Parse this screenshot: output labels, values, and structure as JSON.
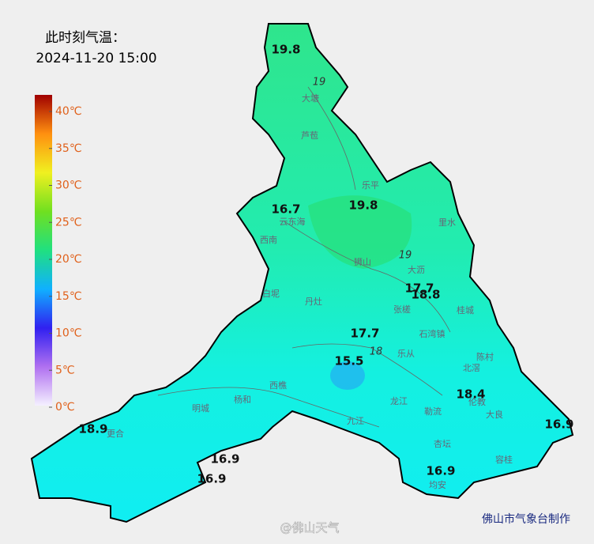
{
  "header": {
    "title": "此时刻气温：",
    "time": "2024-11-20 15:00"
  },
  "legend": {
    "ticks": [
      {
        "value": 0,
        "label": "0℃"
      },
      {
        "value": 5,
        "label": "5℃"
      },
      {
        "value": 10,
        "label": "10℃"
      },
      {
        "value": 15,
        "label": "15℃"
      },
      {
        "value": 20,
        "label": "20℃"
      },
      {
        "value": 25,
        "label": "25℃"
      },
      {
        "value": 30,
        "label": "30℃"
      },
      {
        "value": 35,
        "label": "35℃"
      },
      {
        "value": 40,
        "label": "40℃"
      }
    ]
  },
  "stations": [
    19.8,
    16.7,
    19.8,
    17.7,
    18.8,
    17.7,
    15.5,
    18.4,
    16.9,
    18.9,
    16.9,
    16.9,
    16.9
  ],
  "places": [
    "大塘",
    "芦苞",
    "乐平",
    "云东海",
    "西南",
    "狮山",
    "大沥",
    "里水",
    "白坭",
    "丹灶",
    "张槎",
    "桂城",
    "石湾镇",
    "陈村",
    "北滘",
    "乐从",
    "西樵",
    "杨和",
    "明城",
    "更合",
    "龙江",
    "勒流",
    "九江",
    "杏坛",
    "伦教",
    "大良",
    "容桂",
    "均安"
  ],
  "isolines": [
    19,
    19,
    18
  ],
  "footer": {
    "credit": "佛山市气象台制作",
    "watermark": "@佛山天气"
  }
}
